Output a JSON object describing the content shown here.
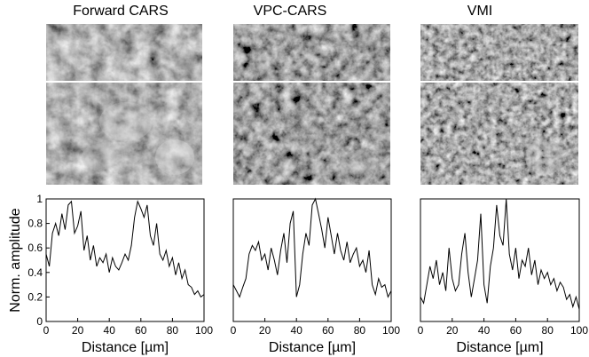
{
  "panels": [
    {
      "title": "Forward CARS",
      "ylabel": "Norm. amplitude",
      "xlabel": "Distance [µm]"
    },
    {
      "title": "VPC-CARS",
      "ylabel": "",
      "xlabel": "Distance [µm]"
    },
    {
      "title": "VMI",
      "ylabel": "",
      "xlabel": "Distance [µm]"
    }
  ],
  "chart_data": [
    {
      "type": "line",
      "title": "Forward CARS",
      "xlabel": "Distance [µm]",
      "ylabel": "Norm. amplitude",
      "xlim": [
        0,
        100
      ],
      "ylim": [
        0,
        1
      ],
      "xticks": [
        0,
        20,
        40,
        60,
        80,
        100
      ],
      "yticks": [
        0,
        0.2,
        0.4,
        0.6,
        0.8,
        1
      ],
      "series": [
        {
          "x": [
            0,
            2,
            4,
            6,
            8,
            10,
            12,
            14,
            16,
            18,
            20,
            22,
            24,
            26,
            28,
            30,
            32,
            34,
            36,
            38,
            40,
            42,
            44,
            46,
            48,
            50,
            52,
            54,
            56,
            58,
            60,
            62,
            64,
            66,
            68,
            70,
            72,
            74,
            76,
            78,
            80,
            82,
            84,
            86,
            88,
            90,
            92,
            94,
            96,
            98,
            100
          ],
          "y": [
            0.55,
            0.45,
            0.72,
            0.8,
            0.7,
            0.88,
            0.75,
            0.95,
            0.98,
            0.72,
            0.78,
            0.9,
            0.58,
            0.7,
            0.5,
            0.62,
            0.45,
            0.52,
            0.48,
            0.55,
            0.4,
            0.52,
            0.45,
            0.42,
            0.48,
            0.55,
            0.5,
            0.62,
            0.85,
            0.98,
            0.92,
            0.85,
            0.95,
            0.7,
            0.62,
            0.8,
            0.55,
            0.5,
            0.58,
            0.45,
            0.52,
            0.38,
            0.48,
            0.35,
            0.42,
            0.3,
            0.28,
            0.22,
            0.25,
            0.2,
            0.22
          ]
        }
      ]
    },
    {
      "type": "line",
      "title": "VPC-CARS",
      "xlabel": "Distance [µm]",
      "ylabel": "",
      "xlim": [
        0,
        100
      ],
      "ylim": [
        0,
        1
      ],
      "xticks": [
        0,
        20,
        40,
        60,
        80,
        100
      ],
      "series": [
        {
          "x": [
            0,
            2,
            4,
            6,
            8,
            10,
            12,
            14,
            16,
            18,
            20,
            22,
            24,
            26,
            28,
            30,
            32,
            34,
            36,
            38,
            40,
            42,
            44,
            46,
            48,
            50,
            52,
            54,
            56,
            58,
            60,
            62,
            64,
            66,
            68,
            70,
            72,
            74,
            76,
            78,
            80,
            82,
            84,
            86,
            88,
            90,
            92,
            94,
            96,
            98,
            100
          ],
          "y": [
            0.3,
            0.25,
            0.2,
            0.28,
            0.35,
            0.55,
            0.62,
            0.58,
            0.65,
            0.5,
            0.55,
            0.42,
            0.6,
            0.5,
            0.38,
            0.58,
            0.72,
            0.48,
            0.8,
            0.9,
            0.2,
            0.3,
            0.55,
            0.72,
            0.62,
            0.95,
            1.0,
            0.88,
            0.75,
            0.6,
            0.85,
            0.7,
            0.55,
            0.72,
            0.58,
            0.5,
            0.65,
            0.48,
            0.55,
            0.6,
            0.45,
            0.5,
            0.4,
            0.58,
            0.3,
            0.22,
            0.35,
            0.28,
            0.3,
            0.2,
            0.25
          ]
        }
      ]
    },
    {
      "type": "line",
      "title": "VMI",
      "xlabel": "Distance [µm]",
      "ylabel": "",
      "xlim": [
        0,
        100
      ],
      "ylim": [
        0,
        1
      ],
      "xticks": [
        0,
        20,
        40,
        60,
        80,
        100
      ],
      "series": [
        {
          "x": [
            0,
            2,
            4,
            6,
            8,
            10,
            12,
            14,
            16,
            18,
            20,
            22,
            24,
            26,
            28,
            30,
            32,
            34,
            36,
            38,
            40,
            42,
            44,
            46,
            48,
            50,
            52,
            54,
            56,
            58,
            60,
            62,
            64,
            66,
            68,
            70,
            72,
            74,
            76,
            78,
            80,
            82,
            84,
            86,
            88,
            90,
            92,
            94,
            96,
            98,
            100
          ],
          "y": [
            0.2,
            0.15,
            0.3,
            0.45,
            0.35,
            0.5,
            0.3,
            0.4,
            0.25,
            0.6,
            0.35,
            0.25,
            0.3,
            0.55,
            0.72,
            0.4,
            0.2,
            0.35,
            0.5,
            0.88,
            0.3,
            0.15,
            0.45,
            0.6,
            0.95,
            0.7,
            0.62,
            1.0,
            0.55,
            0.42,
            0.6,
            0.35,
            0.5,
            0.45,
            0.6,
            0.38,
            0.5,
            0.3,
            0.42,
            0.35,
            0.4,
            0.3,
            0.35,
            0.25,
            0.32,
            0.28,
            0.18,
            0.22,
            0.12,
            0.2,
            0.1
          ]
        }
      ]
    }
  ]
}
